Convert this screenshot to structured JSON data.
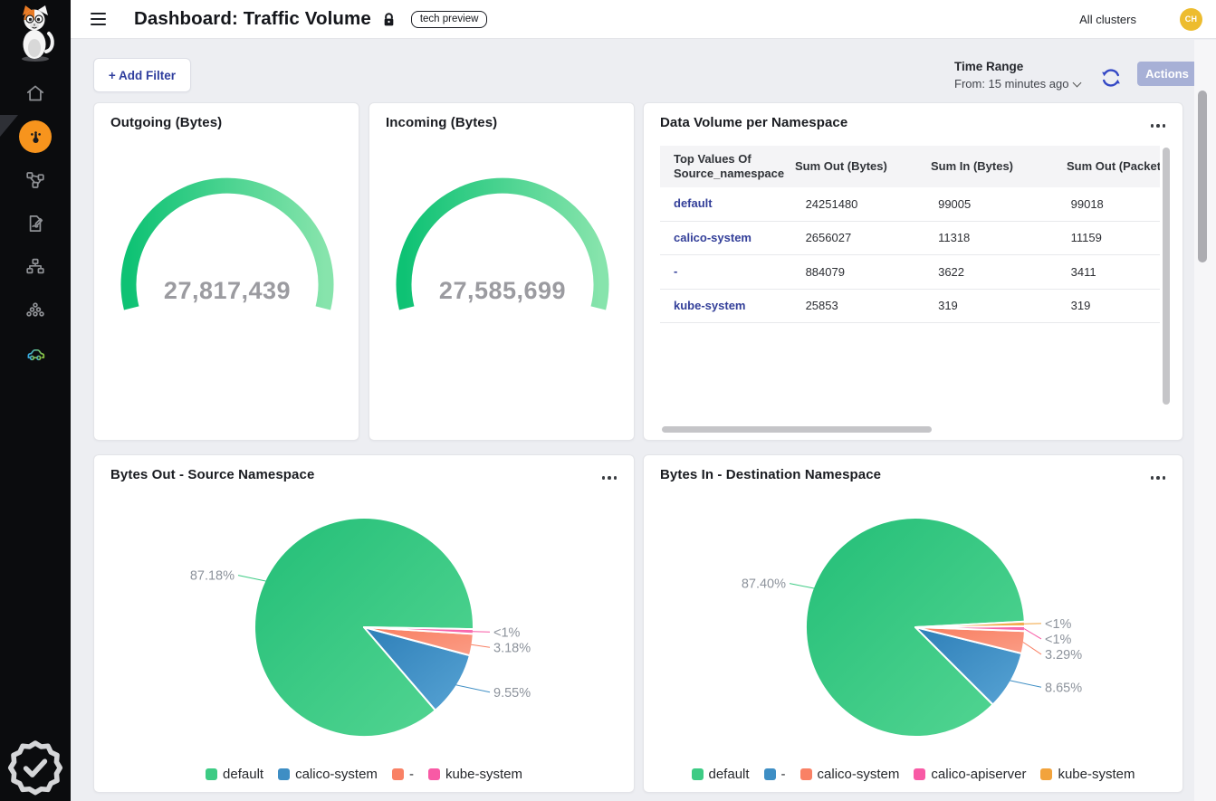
{
  "header": {
    "title": "Dashboard: Traffic Volume",
    "badge": "tech preview",
    "cluster_selector": "All clusters",
    "avatar_initials": "CH"
  },
  "toolbar": {
    "add_filter_label": "+ Add Filter",
    "time_range_label": "Time Range",
    "time_range_value": "From: 15 minutes ago",
    "actions_label": "Actions"
  },
  "sidebar": {
    "items": [
      {
        "name": "home",
        "icon": "home-icon",
        "active": false
      },
      {
        "name": "dashboards",
        "icon": "gauge-icon",
        "active": true
      },
      {
        "name": "topology",
        "icon": "topology-icon",
        "active": false
      },
      {
        "name": "policies",
        "icon": "policy-doc-icon",
        "active": false
      },
      {
        "name": "network",
        "icon": "network-tree-icon",
        "active": false
      },
      {
        "name": "clusters",
        "icon": "cluster-circles-icon",
        "active": false
      },
      {
        "name": "whisker",
        "icon": "car-icon",
        "active": false
      }
    ],
    "bottom_item": {
      "name": "compliance",
      "icon": "badge-check-icon"
    }
  },
  "cards": {
    "gauge_out": {
      "title": "Outgoing (Bytes)",
      "value": "27,817,439"
    },
    "gauge_in": {
      "title": "Incoming (Bytes)",
      "value": "27,585,699"
    },
    "table": {
      "title": "Data Volume per Namespace",
      "columns": [
        "Top Values Of Source_namespace",
        "Sum Out (Bytes)",
        "Sum In (Bytes)",
        "Sum Out (Packets)"
      ],
      "rows": [
        {
          "namespace": "default",
          "cells": [
            "24251480",
            "99005",
            "99018"
          ]
        },
        {
          "namespace": "calico-system",
          "cells": [
            "2656027",
            "11318",
            "11159"
          ]
        },
        {
          "namespace": "-",
          "cells": [
            "884079",
            "3622",
            "3411"
          ]
        },
        {
          "namespace": "kube-system",
          "cells": [
            "25853",
            "319",
            "319"
          ]
        }
      ]
    },
    "pie_out": {
      "title": "Bytes Out - Source Namespace",
      "type": "pie",
      "slices": [
        {
          "label": "default",
          "pct": 87.18,
          "pct_label": "87.18%",
          "color": "green"
        },
        {
          "label": "calico-system",
          "pct": 9.55,
          "pct_label": "9.55%",
          "color": "blue"
        },
        {
          "label": "-",
          "pct": 3.18,
          "pct_label": "3.18%",
          "color": "salmon"
        },
        {
          "label": "kube-system",
          "pct": 0.09,
          "pct_label": "<1%",
          "color": "pink"
        }
      ]
    },
    "pie_in": {
      "title": "Bytes In - Destination Namespace",
      "type": "pie",
      "slices": [
        {
          "label": "default",
          "pct": 87.4,
          "pct_label": "87.40%",
          "color": "green"
        },
        {
          "label": "-",
          "pct": 8.65,
          "pct_label": "8.65%",
          "color": "blue"
        },
        {
          "label": "calico-system",
          "pct": 3.29,
          "pct_label": "3.29%",
          "color": "salmon"
        },
        {
          "label": "calico-apiserver",
          "pct": 0.4,
          "pct_label": "<1%",
          "color": "pink"
        },
        {
          "label": "kube-system",
          "pct": 0.26,
          "pct_label": "<1%",
          "color": "orange"
        }
      ]
    }
  },
  "colors": {
    "sidebar_active": "#F7941D",
    "avatar": "#EDBC2E",
    "namespace_link": "#333F99",
    "gauge_gradient": [
      "#0EC274",
      "#87E4AC"
    ],
    "gauge_value_text": "#9B9BA0",
    "pie_label_text": "#8D939C",
    "palette": {
      "green": [
        "#23BE77",
        "#55D693",
        "#3DCB84"
      ],
      "blue": [
        "#2E7FB8",
        "#57A3D4",
        "#3E8EC4"
      ],
      "salmon": [
        "#F87E60",
        "#FB9C85",
        "#F98165"
      ],
      "pink": [
        "#F24C9C",
        "#F973B4",
        "#F85AA5"
      ],
      "orange": [
        "#EE9C2F",
        "#F5B45F",
        "#F2A33C"
      ]
    }
  }
}
